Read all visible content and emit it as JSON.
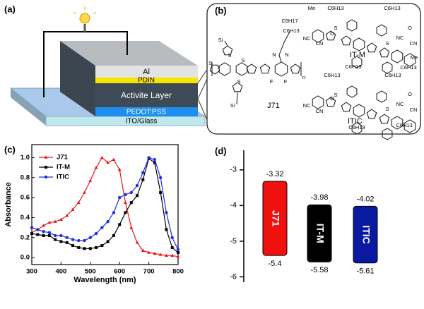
{
  "panel_a": {
    "label": "(a)",
    "layers": [
      "Al",
      "PDIN",
      "Activite Layer",
      "PEDOT:PSS",
      "ITO/Glass"
    ]
  },
  "panel_b": {
    "label": "(b)",
    "molecules": [
      {
        "name": "J71",
        "atoms": [
          "Si",
          "Si",
          "S",
          "S",
          "S",
          "S",
          "N",
          "N",
          "F",
          "F",
          "C6H17",
          "C6H13",
          "n"
        ]
      },
      {
        "name": "IT-M",
        "atoms": [
          "Me",
          "C6H13",
          "C6H13",
          "NC",
          "CN",
          "O",
          "S",
          "S",
          "C6H13",
          "C6H13",
          "O",
          "NC",
          "CN",
          "Me"
        ]
      },
      {
        "name": "ITIC",
        "atoms": [
          "C6H13",
          "C6H13",
          "NC",
          "CN",
          "O",
          "S",
          "S",
          "C6H13",
          "C6H13",
          "O",
          "NC",
          "CN"
        ]
      }
    ]
  },
  "chart_data": [
    {
      "type": "line",
      "label": "(c)",
      "xlabel": "Wavelength (nm)",
      "ylabel": "Absorbance",
      "legend": "upper left",
      "x": [
        300,
        320,
        340,
        360,
        380,
        400,
        420,
        440,
        460,
        480,
        500,
        520,
        540,
        560,
        580,
        600,
        620,
        640,
        660,
        680,
        700,
        720,
        740,
        760,
        780,
        800
      ],
      "xlim": [
        300,
        800
      ],
      "xticks": [
        300,
        400,
        500,
        600,
        700,
        800
      ],
      "ylim": [
        -0.07,
        1.13
      ],
      "yticks": [
        {
          "value": 0,
          "label": "0.0"
        },
        {
          "value": 0.2,
          "label": "0.2"
        },
        {
          "value": 0.4,
          "label": "0.4"
        },
        {
          "value": 0.6,
          "label": "0.6"
        },
        {
          "value": 0.8,
          "label": "0.8"
        },
        {
          "value": 1,
          "label": "1.0"
        }
      ],
      "series": [
        {
          "name": "J71",
          "color": "#e8141b",
          "marker": "triangle",
          "values": [
            0.25,
            0.28,
            0.32,
            0.35,
            0.36,
            0.38,
            0.42,
            0.48,
            0.55,
            0.65,
            0.77,
            0.9,
            1.0,
            0.95,
            0.98,
            0.88,
            0.55,
            0.3,
            0.15,
            0.07,
            0.05,
            0.04,
            0.03,
            0.02,
            0.02,
            0.01
          ]
        },
        {
          "name": "IT-M",
          "color": "#000000",
          "marker": "square",
          "values": [
            0.24,
            0.23,
            0.22,
            0.22,
            0.18,
            0.16,
            0.15,
            0.12,
            0.1,
            0.09,
            0.09,
            0.1,
            0.12,
            0.16,
            0.22,
            0.33,
            0.45,
            0.55,
            0.62,
            0.78,
            0.99,
            0.95,
            0.65,
            0.28,
            0.1,
            0.05
          ]
        },
        {
          "name": "ITIC",
          "color": "#1f2ee0",
          "marker": "circle",
          "values": [
            0.3,
            0.28,
            0.26,
            0.25,
            0.22,
            0.22,
            0.2,
            0.18,
            0.17,
            0.17,
            0.2,
            0.24,
            0.3,
            0.36,
            0.45,
            0.6,
            0.63,
            0.65,
            0.72,
            0.85,
            1.0,
            0.98,
            0.8,
            0.45,
            0.2,
            0.08
          ]
        }
      ]
    },
    {
      "type": "energy_level",
      "label": "(d)",
      "categories": [
        "J71",
        "IT-M",
        "ITIC"
      ],
      "colors": [
        "#f01010",
        "#000000",
        "#0a1aa0"
      ],
      "lumo": [
        -3.32,
        -3.98,
        -4.02
      ],
      "homo": [
        -5.4,
        -5.58,
        -5.61
      ],
      "ylim": [
        -6.15,
        -2.45
      ],
      "yticks": [
        -3,
        -4,
        -5,
        -6
      ]
    }
  ]
}
